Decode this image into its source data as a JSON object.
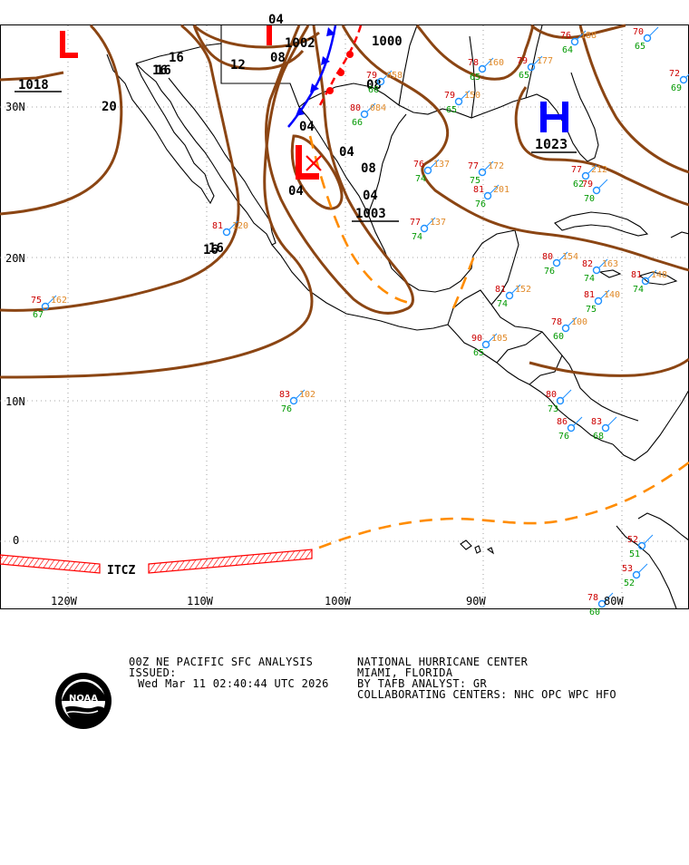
{
  "map": {
    "lat_labels": [
      "30N",
      "20N",
      "10N",
      "0"
    ],
    "lon_labels": [
      "120W",
      "110W",
      "100W",
      "90W",
      "80W"
    ],
    "low_center": {
      "symbol": "L",
      "pressure": "04"
    },
    "high_center": {
      "symbol": "H",
      "pressure": "1023"
    },
    "isobar_labels": [
      "1018",
      "20",
      "16",
      "16",
      "16",
      "12",
      "08",
      "04",
      "04",
      "08",
      "1002",
      "1000",
      "1003",
      "04",
      "08",
      "04",
      "16",
      "16"
    ],
    "itcz_label": "ITCZ",
    "colors": {
      "isobar": "#8b4513",
      "coast": "#000000",
      "low": "#ff0000",
      "high": "#0000ff",
      "trough": "#ff8c00",
      "itcz": "#ff0000",
      "obs_temp": "#cc0000",
      "obs_dew": "#009900",
      "obs_press": "#e08a2a",
      "obs_circle": "#1e90ff"
    },
    "stations": [
      {
        "t": "75",
        "p": "162",
        "d": "67"
      },
      {
        "t": "81",
        "p": "120",
        "d": ""
      },
      {
        "t": "83",
        "p": "102",
        "d": "76"
      },
      {
        "t": "77",
        "p": "137",
        "d": "74"
      },
      {
        "t": "76",
        "p": "137",
        "d": "74"
      },
      {
        "t": "77",
        "p": "172",
        "d": "75"
      },
      {
        "t": "81",
        "p": "201",
        "d": "76"
      },
      {
        "t": "80",
        "p": "154",
        "d": "76"
      },
      {
        "t": "82",
        "p": "163",
        "d": "74"
      },
      {
        "t": "81",
        "p": "148",
        "d": "74"
      },
      {
        "t": "81",
        "p": "152",
        "d": "74"
      },
      {
        "t": "81",
        "p": "140",
        "d": "75"
      },
      {
        "t": "80",
        "p": "",
        "d": "73"
      },
      {
        "t": "90",
        "p": "105",
        "d": "65"
      },
      {
        "t": "78",
        "p": "100",
        "d": "60"
      },
      {
        "t": "86",
        "p": "",
        "d": "76"
      },
      {
        "t": "83",
        "p": "",
        "d": "68"
      },
      {
        "t": "79",
        "p": "177",
        "d": "65"
      },
      {
        "t": "76",
        "p": "188",
        "d": "64"
      },
      {
        "t": "70",
        "p": "",
        "d": "65"
      },
      {
        "t": "72",
        "p": "",
        "d": "69"
      },
      {
        "t": "79",
        "p": "150",
        "d": "65"
      },
      {
        "t": "78",
        "p": "160",
        "d": "65"
      },
      {
        "t": "79",
        "p": "058",
        "d": "66"
      },
      {
        "t": "80",
        "p": "084",
        "d": "66"
      },
      {
        "t": "77",
        "p": "212",
        "d": "62"
      },
      {
        "t": "79",
        "p": "",
        "d": "70"
      },
      {
        "t": "52",
        "p": "",
        "d": "51"
      },
      {
        "t": "53",
        "p": "",
        "d": "52"
      },
      {
        "t": "78",
        "p": "",
        "d": "60"
      }
    ]
  },
  "footer": {
    "line1_left": "00Z NE PACIFIC SFC ANALYSIS",
    "line1_right": "NATIONAL HURRICANE CENTER",
    "line2_left": "ISSUED:",
    "line2_right": "MIAMI, FLORIDA",
    "line3_left": "Wed Mar 11 02:40:44 UTC 2026",
    "line3_right": "BY TAFB ANALYST: GR",
    "line4_right": "COLLABORATING CENTERS: NHC OPC WPC HFO",
    "logo_text": "NOAA"
  }
}
